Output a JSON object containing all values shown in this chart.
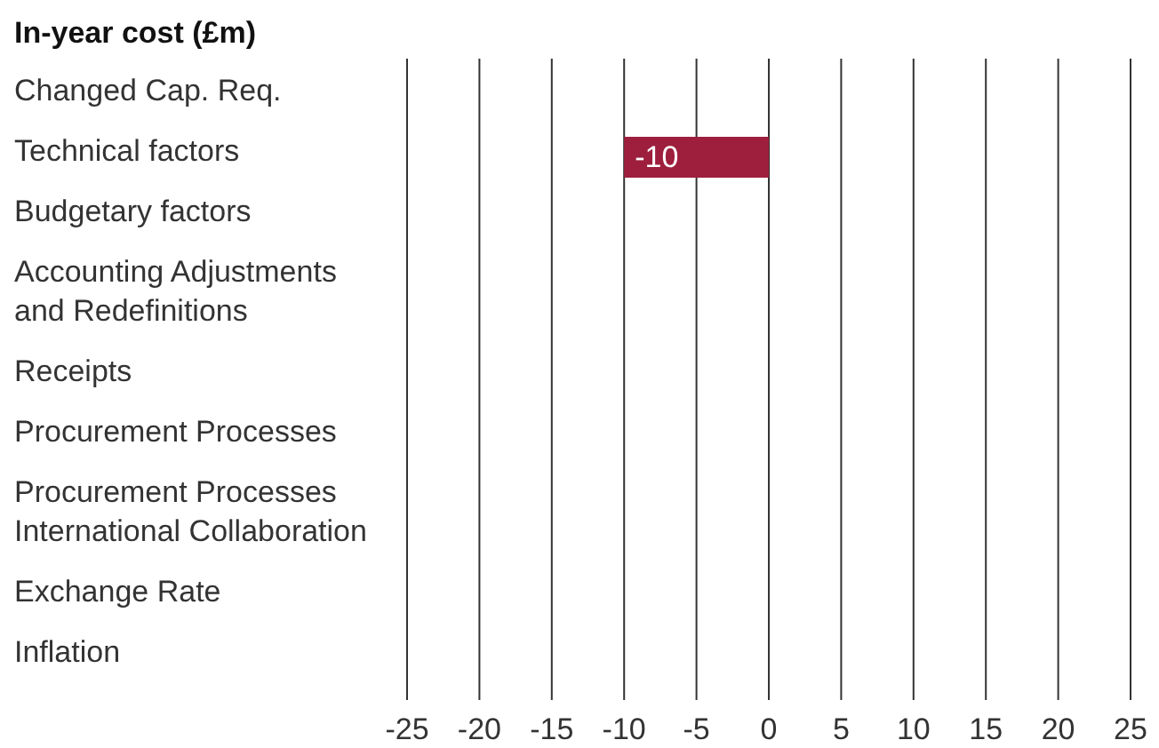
{
  "chart_data": {
    "type": "bar",
    "orientation": "horizontal",
    "title": "In-year cost (£m)",
    "categories": [
      "Changed Cap. Req.",
      "Technical factors",
      "Budgetary factors",
      "Accounting Adjustments and Redefinitions",
      "Receipts",
      "Procurement Processes",
      "Procurement Processes International Collaboration",
      "Exchange Rate",
      "Inflation"
    ],
    "values": [
      null,
      -10,
      null,
      null,
      null,
      null,
      null,
      null,
      null
    ],
    "color": "#9e1f3d",
    "xlim": [
      -25,
      25
    ],
    "xticks": [
      -25,
      -20,
      -15,
      -10,
      -5,
      0,
      5,
      10,
      15,
      20,
      25
    ],
    "grid": "x",
    "data_labels": true
  }
}
